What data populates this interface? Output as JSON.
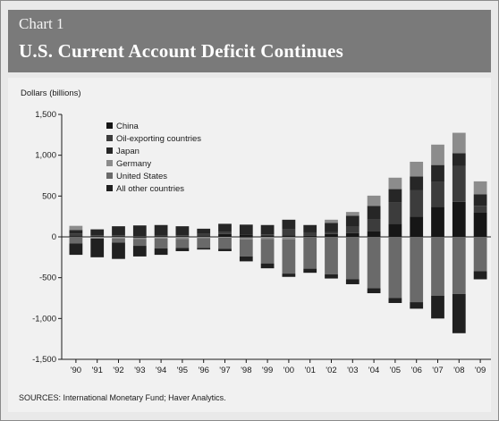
{
  "header": {
    "chart_number": "Chart 1",
    "title": "U.S. Current Account Deficit Continues"
  },
  "source_note": "SOURCES: International Monetary Fund; Haver Analytics.",
  "colors": {
    "China": "#161616",
    "Oil-exporting countries": "#3c3c3c",
    "Japan": "#262626",
    "Germany": "#8c8c8c",
    "United States": "#6a6a6a",
    "All other countries": "#202020"
  },
  "chart_data": {
    "type": "bar",
    "stacked": true,
    "title": "U.S. Current Account Deficit Continues",
    "xlabel": "",
    "ylabel": "Dollars (billions)",
    "ylim": [
      -1500,
      1500
    ],
    "yticks": [
      1500,
      1000,
      500,
      0,
      -500,
      -1000,
      -1500
    ],
    "ytick_labels": [
      "1,500",
      "1,000",
      "500",
      "0",
      "-500",
      "-1,000",
      "-1,500"
    ],
    "categories": [
      "'90",
      "'91",
      "'92",
      "'93",
      "'94",
      "'95",
      "'96",
      "'97",
      "'98",
      "'99",
      "'00",
      "'01",
      "'02",
      "'03",
      "'04",
      "'05",
      "'06",
      "'07",
      "'08",
      "'09"
    ],
    "legend": {
      "position": "top-left"
    },
    "grid": false,
    "series": [
      {
        "name": "China",
        "values": [
          10,
          10,
          5,
          -10,
          10,
          5,
          5,
          35,
          30,
          20,
          20,
          15,
          35,
          45,
          70,
          160,
          250,
          370,
          430,
          300
        ]
      },
      {
        "name": "Oil-exporting countries",
        "values": [
          30,
          10,
          15,
          10,
          5,
          15,
          30,
          30,
          -10,
          10,
          70,
          40,
          25,
          80,
          140,
          260,
          320,
          300,
          440,
          80
        ]
      },
      {
        "name": "Japan",
        "values": [
          45,
          70,
          110,
          130,
          130,
          110,
          65,
          95,
          120,
          115,
          120,
          90,
          110,
          135,
          170,
          165,
          170,
          210,
          155,
          140
        ]
      },
      {
        "name": "Germany",
        "values": [
          50,
          -20,
          -20,
          -15,
          -20,
          -25,
          -15,
          -10,
          -20,
          -25,
          -30,
          0,
          40,
          45,
          125,
          140,
          180,
          250,
          250,
          160
        ]
      },
      {
        "name": "United States",
        "values": [
          -80,
          5,
          -50,
          -85,
          -120,
          -110,
          -120,
          -135,
          -210,
          -300,
          -420,
          -390,
          -460,
          -520,
          -630,
          -750,
          -800,
          -720,
          -700,
          -420
        ]
      },
      {
        "name": "All other countries",
        "values": [
          -140,
          -230,
          -200,
          -130,
          -80,
          -40,
          -20,
          -30,
          -60,
          -60,
          -40,
          -50,
          -50,
          -60,
          -60,
          -60,
          -80,
          -280,
          -480,
          -100
        ]
      }
    ]
  }
}
